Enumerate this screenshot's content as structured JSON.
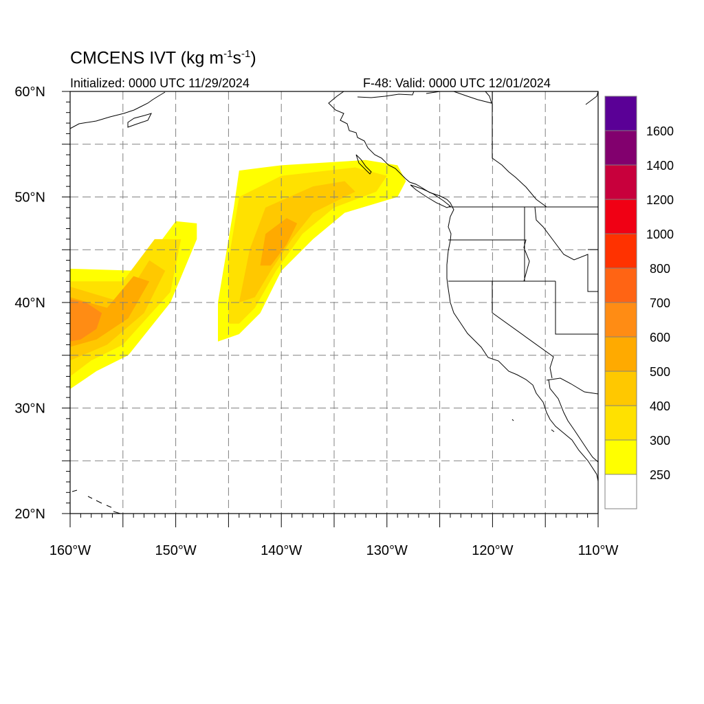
{
  "title": {
    "main": "CMCENS IVT (kg m",
    "exp1": "-1",
    "mid": "s",
    "exp2": "-1",
    "close": ")"
  },
  "subtitle_left": "Initialized: 0000 UTC 11/29/2024",
  "subtitle_right": "F-48: Valid: 0000 UTC 12/01/2024",
  "colors": {
    "levels": [
      "#ffffff",
      "#ffff00",
      "#ffe100",
      "#ffc800",
      "#ffaa00",
      "#ff8c14",
      "#ff6414",
      "#ff3200",
      "#f00014",
      "#c8003c",
      "#82006e",
      "#5a0096"
    ],
    "coast": "#000000",
    "grid": "#808080"
  },
  "chart_data": {
    "type": "heatmap",
    "title": "CMCENS IVT (kg m-1s-1)",
    "lon_range": [
      -160,
      -110
    ],
    "lat_range": [
      20,
      60
    ],
    "x_ticks": [
      "160°W",
      "150°W",
      "140°W",
      "130°W",
      "120°W",
      "110°W"
    ],
    "y_ticks": [
      "20°N",
      "30°N",
      "40°N",
      "50°N",
      "60°N"
    ],
    "colorbar_labels": [
      "250",
      "300",
      "400",
      "500",
      "600",
      "700",
      "800",
      "1000",
      "1200",
      "1400",
      "1600"
    ],
    "colorbar_thresholds": [
      250,
      300,
      400,
      500,
      600,
      700,
      800,
      1000,
      1200,
      1400,
      1600
    ],
    "grid": true,
    "features": [
      {
        "name": "western plume",
        "levels": [
          {
            "value": 250,
            "polygon": [
              [
                -160,
                43.2
              ],
              [
                -153.5,
                43.0
              ],
              [
                -150,
                47.7
              ],
              [
                -148,
                47.5
              ],
              [
                -148,
                46
              ],
              [
                -150.5,
                40
              ],
              [
                -154.5,
                35
              ],
              [
                -157.5,
                33.5
              ],
              [
                -160,
                31.8
              ]
            ]
          },
          {
            "value": 300,
            "polygon": [
              [
                -160,
                42
              ],
              [
                -155,
                42
              ],
              [
                -152,
                46
              ],
              [
                -149.5,
                46
              ],
              [
                -150.5,
                41
              ],
              [
                -155,
                36
              ],
              [
                -158,
                34.5
              ],
              [
                -160,
                33
              ]
            ]
          },
          {
            "value": 400,
            "polygon": [
              [
                -160,
                41.5
              ],
              [
                -155,
                40
              ],
              [
                -152.5,
                44
              ],
              [
                -151,
                43
              ],
              [
                -153,
                39
              ],
              [
                -156.5,
                36
              ],
              [
                -160,
                34.5
              ]
            ]
          },
          {
            "value": 500,
            "polygon": [
              [
                -160,
                40.5
              ],
              [
                -156.5,
                39.5
              ],
              [
                -154,
                42.5
              ],
              [
                -152.5,
                42
              ],
              [
                -154.5,
                38.5
              ],
              [
                -157.5,
                36.5
              ],
              [
                -160,
                35.8
              ]
            ]
          },
          {
            "value": 600,
            "polygon": [
              [
                -160,
                40.3
              ],
              [
                -158.5,
                40
              ],
              [
                -157,
                39
              ],
              [
                -157.5,
                37.5
              ],
              [
                -159,
                36.5
              ],
              [
                -160,
                36.3
              ]
            ]
          }
        ]
      },
      {
        "name": "eastern plume",
        "levels": [
          {
            "value": 250,
            "polygon": [
              [
                -146,
                36.3
              ],
              [
                -146,
                40
              ],
              [
                -144.5,
                49
              ],
              [
                -144,
                52.5
              ],
              [
                -140,
                53
              ],
              [
                -132,
                53.5
              ],
              [
                -129,
                53
              ],
              [
                -128.2,
                51.5
              ],
              [
                -129,
                50
              ],
              [
                -134,
                48.5
              ],
              [
                -137,
                46
              ],
              [
                -140,
                43
              ],
              [
                -142,
                39
              ],
              [
                -144,
                37
              ],
              [
                -146,
                36.3
              ]
            ]
          },
          {
            "value": 300,
            "polygon": [
              [
                -145,
                38
              ],
              [
                -145,
                44
              ],
              [
                -144,
                50
              ],
              [
                -140,
                52
              ],
              [
                -133,
                52.8
              ],
              [
                -130,
                52
              ],
              [
                -131,
                50.5
              ],
              [
                -135,
                49
              ],
              [
                -138,
                46.5
              ],
              [
                -140.5,
                43
              ],
              [
                -142.5,
                39.5
              ],
              [
                -144,
                38
              ]
            ]
          },
          {
            "value": 400,
            "polygon": [
              [
                -144,
                40
              ],
              [
                -143,
                45
              ],
              [
                -141.5,
                49
              ],
              [
                -137,
                51
              ],
              [
                -134,
                51.5
              ],
              [
                -133,
                50.5
              ],
              [
                -137,
                48.5
              ],
              [
                -139,
                46
              ],
              [
                -141,
                43
              ],
              [
                -142.5,
                40.5
              ]
            ]
          },
          {
            "value": 500,
            "polygon": [
              [
                -142,
                43.5
              ],
              [
                -141.5,
                46.5
              ],
              [
                -139.5,
                48
              ],
              [
                -138.5,
                47.5
              ],
              [
                -139.5,
                45.5
              ],
              [
                -141,
                43.5
              ]
            ]
          }
        ]
      }
    ]
  }
}
